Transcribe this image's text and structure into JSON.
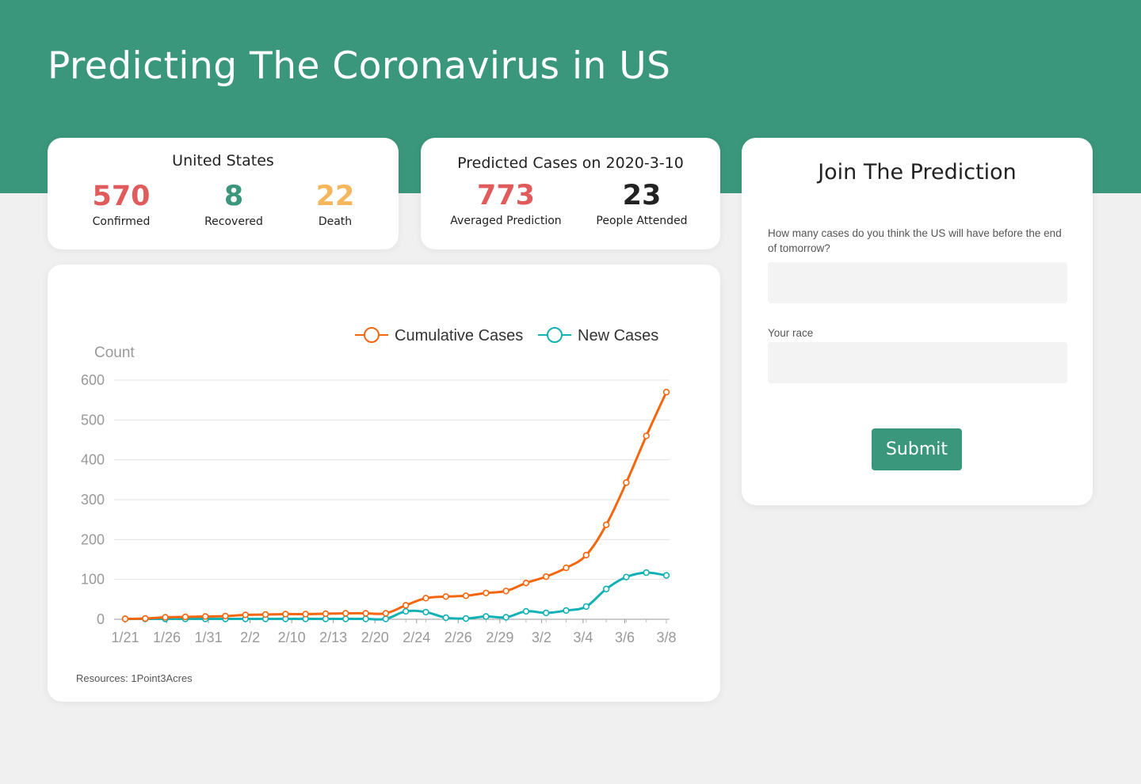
{
  "header": {
    "title": "Predicting The Coronavirus in US"
  },
  "us_card": {
    "title": "United States",
    "stats": [
      {
        "value": "570",
        "label": "Confirmed"
      },
      {
        "value": "8",
        "label": "Recovered"
      },
      {
        "value": "22",
        "label": "Death"
      }
    ]
  },
  "prediction_card": {
    "title": "Predicted Cases on 2020-3-10",
    "stats": [
      {
        "value": "773",
        "label": "Averaged Prediction"
      },
      {
        "value": "23",
        "label": "People Attended"
      }
    ]
  },
  "join_card": {
    "title": "Join The Prediction",
    "question_label": "How many cases do you think the US will have before the end of tomorrow?",
    "question_value": "",
    "race_label": "Your race",
    "race_value": "",
    "submit_label": "Submit"
  },
  "chart_footer": "Resources: 1Point3Acres",
  "colors": {
    "brand": "#3a977b",
    "confirmed": "#e05c5c",
    "death": "#f7b55c",
    "cumulative": "#f5670f",
    "new": "#11b1b5"
  },
  "chart_data": {
    "type": "line",
    "ylabel": "Count",
    "ylim": [
      0,
      600
    ],
    "yticks": [
      "0",
      "100",
      "200",
      "300",
      "400",
      "500",
      "600"
    ],
    "xticks": [
      "1/21",
      "1/26",
      "1/31",
      "2/2",
      "2/10",
      "2/13",
      "2/20",
      "2/24",
      "2/26",
      "2/29",
      "3/2",
      "3/4",
      "3/6",
      "3/8"
    ],
    "legend_position": "top-right",
    "grid": true,
    "series": [
      {
        "name": "Cumulative Cases",
        "values": [
          1,
          2,
          5,
          6,
          7,
          8,
          11,
          12,
          13,
          13,
          14,
          15,
          15,
          15,
          35,
          53,
          57,
          59,
          66,
          71,
          91,
          107,
          129,
          161,
          237,
          343,
          460,
          570
        ]
      },
      {
        "name": "New Cases",
        "values": [
          1,
          1,
          1,
          1,
          1,
          1,
          1,
          1,
          1,
          1,
          1,
          1,
          1,
          1,
          20,
          18,
          4,
          2,
          7,
          5,
          20,
          16,
          22,
          32,
          76,
          106,
          117,
          110
        ]
      }
    ]
  }
}
